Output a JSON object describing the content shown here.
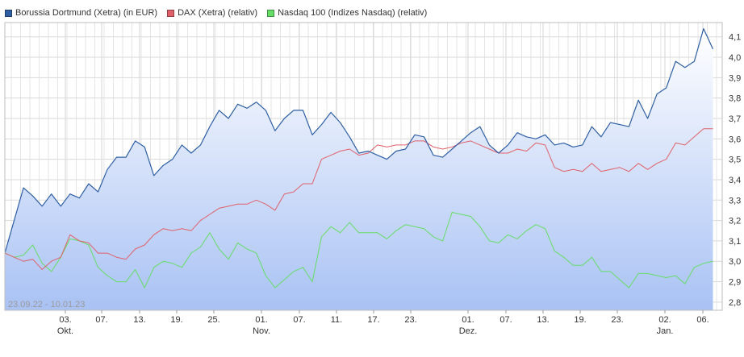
{
  "legend": [
    {
      "label": "Borussia Dortmund (Xetra) (in EUR)",
      "color": "#2f5fa3"
    },
    {
      "label": "DAX (Xetra) (relativ)",
      "color": "#e0606a"
    },
    {
      "label": "Nasdaq 100 (Indizes Nasdaq) (relativ)",
      "color": "#66dd66"
    }
  ],
  "date_range": "23.09.22 - 10.01.23",
  "chart_data": {
    "type": "line",
    "x_tick_labels": [
      "03.",
      "07.",
      "13.",
      "19.",
      "25.",
      "01.",
      "07.",
      "11.",
      "17.",
      "23.",
      "01.",
      "07.",
      "13.",
      "19.",
      "23.",
      "02.",
      "06."
    ],
    "month_labels": [
      "Okt.",
      "Nov.",
      "Dez.",
      "Jan."
    ],
    "y_tick_labels": [
      "2,8",
      "2,9",
      "3,0",
      "3,1",
      "3,2",
      "3,3",
      "3,4",
      "3,5",
      "3,6",
      "3,7",
      "3,8",
      "3,9",
      "4,0",
      "4,1"
    ],
    "ylim": [
      2.76,
      4.17
    ],
    "grid": true,
    "legend_position": "top-left",
    "x_index_range": [
      0,
      77
    ],
    "series": [
      {
        "name": "Borussia Dortmund (Xetra) (in EUR)",
        "color": "#2f5fa3",
        "values": [
          3.04,
          3.2,
          3.36,
          3.32,
          3.27,
          3.33,
          3.27,
          3.33,
          3.31,
          3.38,
          3.34,
          3.45,
          3.51,
          3.51,
          3.59,
          3.56,
          3.42,
          3.47,
          3.5,
          3.57,
          3.53,
          3.57,
          3.66,
          3.74,
          3.7,
          3.77,
          3.75,
          3.78,
          3.74,
          3.64,
          3.7,
          3.74,
          3.74,
          3.62,
          3.67,
          3.73,
          3.68,
          3.61,
          3.53,
          3.54,
          3.52,
          3.5,
          3.54,
          3.55,
          3.62,
          3.61,
          3.52,
          3.51,
          3.55,
          3.59,
          3.63,
          3.66,
          3.57,
          3.53,
          3.57,
          3.63,
          3.61,
          3.6,
          3.62,
          3.57,
          3.58,
          3.56,
          3.57,
          3.66,
          3.61,
          3.68,
          3.67,
          3.66,
          3.79,
          3.7,
          3.82,
          3.85,
          3.98,
          3.95,
          3.98,
          4.14,
          4.04
        ]
      },
      {
        "name": "DAX (Xetra) (relativ)",
        "color": "#e0606a",
        "values": [
          3.04,
          3.02,
          3.0,
          3.01,
          2.96,
          3.0,
          3.02,
          3.13,
          3.1,
          3.09,
          3.04,
          3.04,
          3.02,
          3.01,
          3.06,
          3.08,
          3.13,
          3.16,
          3.15,
          3.16,
          3.15,
          3.2,
          3.23,
          3.26,
          3.27,
          3.28,
          3.28,
          3.3,
          3.28,
          3.25,
          3.33,
          3.34,
          3.38,
          3.38,
          3.5,
          3.52,
          3.54,
          3.55,
          3.52,
          3.53,
          3.57,
          3.56,
          3.57,
          3.57,
          3.59,
          3.59,
          3.56,
          3.55,
          3.56,
          3.58,
          3.59,
          3.57,
          3.55,
          3.53,
          3.53,
          3.55,
          3.54,
          3.58,
          3.57,
          3.46,
          3.44,
          3.45,
          3.44,
          3.48,
          3.44,
          3.45,
          3.46,
          3.44,
          3.48,
          3.45,
          3.48,
          3.5,
          3.58,
          3.57,
          3.61,
          3.65,
          3.65
        ]
      },
      {
        "name": "Nasdaq 100 (Indizes Nasdaq) (relativ)",
        "color": "#66dd66",
        "values": [
          3.04,
          3.02,
          3.03,
          3.08,
          2.99,
          2.95,
          3.02,
          3.11,
          3.1,
          3.08,
          2.97,
          2.93,
          2.9,
          2.9,
          2.96,
          2.87,
          2.97,
          3.0,
          2.99,
          2.97,
          3.04,
          3.07,
          3.14,
          3.06,
          3.01,
          3.09,
          3.06,
          3.04,
          2.93,
          2.87,
          2.91,
          2.95,
          2.97,
          2.9,
          3.12,
          3.17,
          3.14,
          3.19,
          3.14,
          3.14,
          3.14,
          3.11,
          3.15,
          3.18,
          3.17,
          3.16,
          3.12,
          3.1,
          3.24,
          3.23,
          3.22,
          3.17,
          3.1,
          3.09,
          3.13,
          3.11,
          3.15,
          3.18,
          3.16,
          3.05,
          3.02,
          2.98,
          2.98,
          3.02,
          2.95,
          2.95,
          2.91,
          2.87,
          2.94,
          2.94,
          2.93,
          2.92,
          2.93,
          2.89,
          2.97,
          2.99,
          3.0
        ]
      }
    ]
  }
}
